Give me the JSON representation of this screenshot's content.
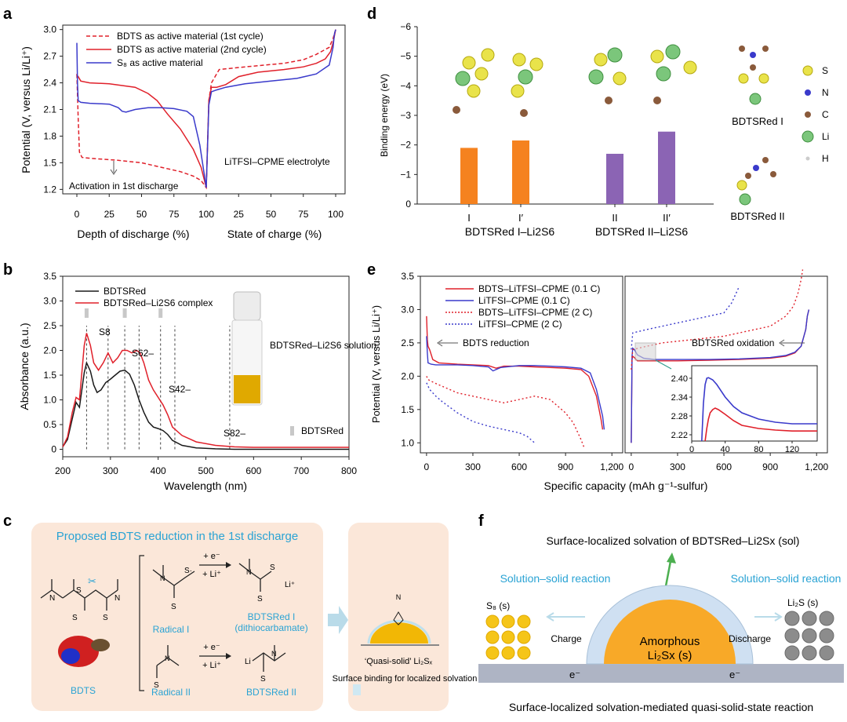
{
  "panel_labels": {
    "a": "a",
    "b": "b",
    "c": "c",
    "d": "d",
    "e": "e",
    "f": "f"
  },
  "colors": {
    "red": "#e0202a",
    "blue": "#3a3acb",
    "black": "#1a1a1a",
    "orange": "#f5821f",
    "purple": "#8b64b4",
    "cyan": "#2aa3d4",
    "peach": "#fbe7d9",
    "green": "#4caf50"
  },
  "chart_data": [
    {
      "id": "a",
      "type": "line",
      "title": "",
      "ylabel": "Potential (V, versus Li/Li⁺)",
      "ylim": [
        1.15,
        3.05
      ],
      "yticks": [
        "1.2",
        "1.5",
        "1.8",
        "2.1",
        "2.4",
        "2.7",
        "3.0"
      ],
      "xticks": [
        "0",
        "25",
        "50",
        "75",
        "100",
        "25",
        "50",
        "75",
        "100"
      ],
      "xlabel_left": "Depth of discharge (%)",
      "xlabel_right": "State of charge (%)",
      "x_meaning": "0-100 depth of discharge then 100-200 = 0-100 state of charge",
      "legend": [
        "BDTS as active material (1st cycle)",
        "BDTS as active material (2nd cycle)",
        "S₈ as active material"
      ],
      "annotation_electrolyte": "LiTFSI–CPME electrolyte",
      "annotation_activation": "Activation in 1st discharge",
      "series": [
        {
          "name": "BDTS 1st cycle",
          "style": "dashed",
          "x": [
            0,
            1,
            2,
            4,
            10,
            30,
            50,
            65,
            80,
            90,
            96,
            100,
            102,
            104,
            110,
            130,
            160,
            175,
            185,
            195,
            198,
            200
          ],
          "y": [
            2.5,
            2.0,
            1.62,
            1.56,
            1.55,
            1.53,
            1.5,
            1.45,
            1.4,
            1.35,
            1.3,
            1.22,
            2.2,
            2.4,
            2.55,
            2.58,
            2.62,
            2.66,
            2.72,
            2.8,
            2.9,
            3.0
          ]
        },
        {
          "name": "BDTS 2nd cycle",
          "style": "solid",
          "x": [
            0,
            1,
            3,
            10,
            25,
            45,
            55,
            62,
            70,
            80,
            90,
            96,
            100,
            102,
            104,
            108,
            115,
            125,
            140,
            160,
            175,
            185,
            192,
            196,
            198,
            200
          ],
          "y": [
            2.45,
            2.47,
            2.42,
            2.4,
            2.39,
            2.35,
            2.28,
            2.2,
            2.05,
            1.88,
            1.65,
            1.45,
            1.22,
            2.2,
            2.35,
            2.35,
            2.38,
            2.47,
            2.52,
            2.55,
            2.58,
            2.62,
            2.67,
            2.75,
            2.85,
            3.0
          ]
        },
        {
          "name": "S8",
          "style": "solid",
          "x": [
            0,
            0.5,
            1,
            3,
            10,
            25,
            32,
            35,
            38,
            45,
            55,
            65,
            75,
            85,
            90,
            95,
            100,
            102,
            104,
            108,
            115,
            130,
            150,
            170,
            185,
            195,
            198,
            199,
            200
          ],
          "y": [
            2.85,
            2.4,
            2.2,
            2.18,
            2.17,
            2.16,
            2.12,
            2.08,
            2.07,
            2.1,
            2.12,
            2.12,
            2.11,
            2.08,
            2.02,
            1.7,
            1.22,
            2.15,
            2.3,
            2.32,
            2.35,
            2.39,
            2.42,
            2.45,
            2.5,
            2.6,
            2.8,
            2.95,
            3.0
          ]
        }
      ]
    },
    {
      "id": "b",
      "type": "line",
      "ylabel": "Absorbance (a.u.)",
      "xlabel": "Wavelength (nm)",
      "xlim": [
        200,
        800
      ],
      "ylim": [
        -0.15,
        3.5
      ],
      "xticks": [
        "200",
        "300",
        "400",
        "500",
        "600",
        "700",
        "800"
      ],
      "yticks": [
        "0",
        "0.5",
        "1.0",
        "1.5",
        "2.0",
        "2.5",
        "3.0",
        "3.5"
      ],
      "legend": [
        "BDTSRed",
        "BDTSRed–Li2S6 complex"
      ],
      "peak_labels": {
        "s8": "S8",
        "s6": "S62–",
        "s4": "S42–",
        "s8dian": "S82–"
      },
      "peak_positions": [
        250,
        295,
        330,
        360,
        405,
        435,
        550
      ],
      "peak_markers_nm": [
        250,
        330,
        405
      ],
      "marker_legend": "BDTSRed",
      "vial_caption": "BDTSRed–Li2S6 solution",
      "series": [
        {
          "name": "BDTSRed",
          "x": [
            200,
            210,
            220,
            228,
            235,
            245,
            250,
            258,
            265,
            272,
            280,
            290,
            300,
            310,
            320,
            330,
            340,
            350,
            360,
            370,
            380,
            390,
            400,
            410,
            420,
            430,
            450,
            480,
            520,
            560,
            600,
            700,
            800
          ],
          "y": [
            0.05,
            0.2,
            0.62,
            0.95,
            0.85,
            1.55,
            1.75,
            1.58,
            1.3,
            1.15,
            1.2,
            1.35,
            1.42,
            1.5,
            1.58,
            1.6,
            1.52,
            1.3,
            1.0,
            0.75,
            0.55,
            0.45,
            0.42,
            0.38,
            0.3,
            0.18,
            0.08,
            0.03,
            0.01,
            0.0,
            0.0,
            0.0,
            0.0
          ]
        },
        {
          "name": "BDTSRed–Li2S6 complex",
          "x": [
            200,
            210,
            220,
            228,
            235,
            245,
            250,
            258,
            265,
            275,
            285,
            295,
            305,
            315,
            325,
            335,
            345,
            355,
            362,
            370,
            380,
            390,
            400,
            410,
            420,
            430,
            450,
            480,
            520,
            560,
            600,
            700,
            800
          ],
          "y": [
            0.05,
            0.25,
            0.75,
            1.05,
            1.0,
            2.1,
            2.35,
            2.1,
            1.75,
            1.6,
            1.75,
            1.95,
            1.75,
            1.85,
            2.0,
            2.0,
            1.95,
            2.0,
            1.95,
            1.75,
            1.4,
            1.2,
            1.05,
            0.9,
            0.7,
            0.45,
            0.28,
            0.15,
            0.08,
            0.05,
            0.04,
            0.04,
            0.04
          ]
        }
      ]
    },
    {
      "id": "d",
      "type": "bar",
      "ylabel": "Binding energy (eV)",
      "ylim": [
        0,
        -6
      ],
      "yticks": [
        "0",
        "−1",
        "−2",
        "−3",
        "−4",
        "−5",
        "−6"
      ],
      "categories": [
        "I",
        "I′",
        "II",
        "II′"
      ],
      "values": [
        -1.9,
        -2.15,
        -1.7,
        -2.45
      ],
      "group_labels": [
        "BDTSRed I–Li2S6",
        "BDTSRed II–Li2S6"
      ],
      "side_labels": {
        "mol1": "BDTSRed I",
        "mol2": "BDTSRed II"
      },
      "atom_legend": [
        "S",
        "N",
        "C",
        "Li",
        "H"
      ]
    },
    {
      "id": "e",
      "type": "line",
      "ylabel": "Potential (V, versus Li/Li⁺)",
      "xlabel": "Specific capacity (mAh g⁻¹-sulfur)",
      "ylim": [
        0.85,
        3.5
      ],
      "xlim": [
        -40,
        1270
      ],
      "yticks": [
        "1.0",
        "1.5",
        "2.0",
        "2.5",
        "3.0",
        "3.5"
      ],
      "xticks": [
        "0",
        "300",
        "600",
        "900",
        "1,200"
      ],
      "legend": [
        "BDTS–LiTFSI–CPME (0.1 C)",
        "LiTFSI–CPME (0.1 C)",
        "BDTS–LiTFSI–CPME (2 C)",
        "LiTFSI–CPME (2 C)"
      ],
      "annotation_reduction": "BDTS reduction",
      "annotation_oxidation": "BDTSRed oxidation",
      "inset": {
        "yticks": [
          "2.22",
          "2.28",
          "2.34",
          "2.40"
        ],
        "xticks": [
          "0",
          "40",
          "80",
          "120"
        ],
        "ylim": [
          2.2,
          2.44
        ],
        "xlim": [
          0,
          150
        ]
      },
      "discharge": [
        {
          "name": "BDTS 0.1C",
          "x": [
            0,
            5,
            10,
            20,
            40,
            80,
            200,
            300,
            400,
            450,
            500,
            600,
            700,
            800,
            900,
            1000,
            1050,
            1100,
            1130,
            1140
          ],
          "y": [
            2.9,
            2.55,
            2.45,
            2.4,
            2.25,
            2.2,
            2.18,
            2.17,
            2.16,
            2.12,
            2.15,
            2.15,
            2.14,
            2.13,
            2.12,
            2.1,
            2.0,
            1.7,
            1.35,
            1.2
          ]
        },
        {
          "name": "LiTFSI 0.1C",
          "x": [
            0,
            5,
            10,
            30,
            60,
            100,
            200,
            300,
            400,
            430,
            480,
            600,
            700,
            800,
            900,
            1000,
            1060,
            1100,
            1140,
            1150
          ],
          "y": [
            2.6,
            2.35,
            2.2,
            2.18,
            2.17,
            2.17,
            2.17,
            2.16,
            2.14,
            2.08,
            2.13,
            2.16,
            2.16,
            2.15,
            2.14,
            2.12,
            2.05,
            1.8,
            1.4,
            1.2
          ]
        },
        {
          "name": "BDTS 2C",
          "x": [
            0,
            10,
            50,
            100,
            200,
            300,
            400,
            500,
            600,
            700,
            800,
            900,
            950,
            1000,
            1020
          ],
          "y": [
            2.0,
            1.95,
            1.9,
            1.85,
            1.75,
            1.7,
            1.65,
            1.6,
            1.65,
            1.7,
            1.65,
            1.45,
            1.3,
            1.05,
            0.93
          ]
        },
        {
          "name": "LiTFSI 2C",
          "x": [
            0,
            20,
            60,
            100,
            200,
            300,
            400,
            500,
            600,
            650,
            700
          ],
          "y": [
            1.9,
            1.8,
            1.7,
            1.62,
            1.45,
            1.32,
            1.25,
            1.2,
            1.15,
            1.1,
            1.0
          ]
        }
      ],
      "charge": [
        {
          "name": "BDTS 0.1C",
          "x": [
            0,
            5,
            10,
            20,
            40,
            80,
            150,
            300,
            500,
            700,
            900,
            1000,
            1060,
            1100,
            1130,
            1140,
            1150
          ],
          "y": [
            1.0,
            2.25,
            2.3,
            2.28,
            2.23,
            2.23,
            2.23,
            2.23,
            2.24,
            2.25,
            2.27,
            2.3,
            2.35,
            2.45,
            2.7,
            2.9,
            3.0
          ]
        },
        {
          "name": "LiTFSI 0.1C",
          "x": [
            0,
            5,
            10,
            20,
            40,
            80,
            150,
            300,
            500,
            700,
            900,
            1000,
            1060,
            1100,
            1130,
            1140,
            1150
          ],
          "y": [
            1.0,
            2.3,
            2.42,
            2.4,
            2.32,
            2.27,
            2.25,
            2.25,
            2.25,
            2.26,
            2.28,
            2.31,
            2.36,
            2.45,
            2.7,
            2.9,
            3.0
          ]
        },
        {
          "name": "BDTS 2C",
          "x": [
            0,
            10,
            100,
            200,
            400,
            600,
            800,
            900,
            1000,
            1050,
            1080,
            1100,
            1110
          ],
          "y": [
            2.1,
            2.4,
            2.45,
            2.5,
            2.55,
            2.6,
            2.7,
            2.75,
            2.9,
            3.05,
            3.25,
            3.45,
            3.6
          ]
        },
        {
          "name": "LiTFSI 2C",
          "x": [
            0,
            10,
            100,
            200,
            400,
            500,
            600,
            650,
            680,
            700
          ],
          "y": [
            2.4,
            2.65,
            2.7,
            2.75,
            2.85,
            2.9,
            2.95,
            3.1,
            3.25,
            3.35
          ]
        }
      ],
      "inset_series": [
        {
          "name": "LiTFSI 0.1C",
          "x": [
            12,
            14,
            16,
            18,
            20,
            25,
            30,
            40,
            50,
            60,
            80,
            100,
            120,
            150
          ],
          "y": [
            2.2,
            2.32,
            2.38,
            2.4,
            2.402,
            2.395,
            2.38,
            2.34,
            2.31,
            2.29,
            2.27,
            2.26,
            2.255,
            2.255
          ]
        },
        {
          "name": "BDTS 0.1C",
          "x": [
            16,
            18,
            20,
            22,
            25,
            28,
            32,
            40,
            50,
            60,
            80,
            100,
            120,
            150
          ],
          "y": [
            2.2,
            2.24,
            2.27,
            2.29,
            2.3,
            2.305,
            2.3,
            2.285,
            2.265,
            2.25,
            2.24,
            2.235,
            2.232,
            2.232
          ]
        }
      ]
    }
  ],
  "panel_c": {
    "title": "Proposed BDTS reduction in the 1st discharge",
    "bdts": "BDTS",
    "radical1": "Radical I",
    "radical2": "Radical II",
    "product1": "BDTSRed I",
    "product1_sub": "(dithiocarbamate)",
    "product2": "BDTSRed II",
    "arrow_top": "+ e⁻",
    "arrow_bot": "+ Li⁺",
    "quasi": "‘Quasi-solid’ Li₂Sₓ",
    "surface": "Surface binding for localized solvation",
    "lithium_plus": "Li⁺",
    "li_atom": "Li"
  },
  "panel_f": {
    "title": "Surface-localized solvation of BDTSRed–Li2Sx (sol)",
    "left_reaction": "Solution–solid reaction",
    "right_reaction": "Solution–solid reaction",
    "s8": "S₈ (s)",
    "li2s": "Li₂S (s)",
    "charge": "Charge",
    "discharge": "Discharge",
    "core": "Amorphous",
    "core2": "Li₂Sx (s)",
    "electron": "e⁻",
    "caption": "Surface-localized solvation-mediated quasi-solid-state reaction"
  }
}
